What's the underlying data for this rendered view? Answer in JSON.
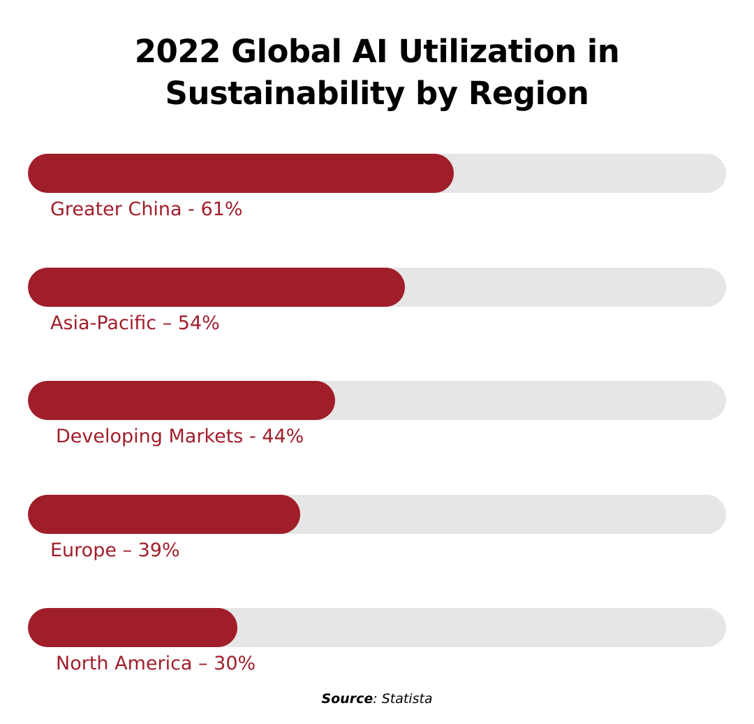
{
  "title_lines": [
    "2022 Global AI Utilization in",
    "Sustainability by Region"
  ],
  "source": {
    "label": "Source",
    "separator": ": ",
    "value": "Statista"
  },
  "colors": {
    "bar": "#a01e2a",
    "track": "#e6e6e6",
    "label": "#a01e2a",
    "title": "#000000"
  },
  "chart_data": {
    "type": "bar",
    "orientation": "horizontal",
    "title": "2022 Global AI Utilization in Sustainability by Region",
    "categories": [
      "Greater China",
      "Asia-Pacific",
      "Developing Markets",
      "Europe",
      "North America"
    ],
    "values": [
      61,
      54,
      44,
      39,
      30
    ],
    "labels": [
      "Greater China - 61%",
      "Asia-Pacific – 54%",
      "Developing Markets - 44%",
      "Europe – 39%",
      "North America – 30%"
    ],
    "unit": "%",
    "xlim": [
      0,
      100
    ],
    "grid": false,
    "legend": "none"
  }
}
